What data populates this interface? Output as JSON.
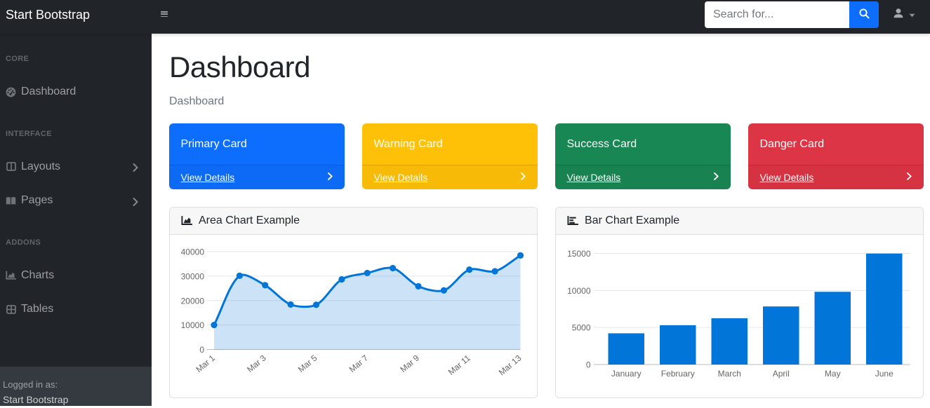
{
  "topnav": {
    "brand": "Start Bootstrap",
    "search": {
      "placeholder": "Search for..."
    }
  },
  "sidebar": {
    "sections": [
      {
        "heading": "CORE",
        "items": [
          {
            "label": "Dashboard",
            "icon": "gauge-icon",
            "chevron": false
          }
        ]
      },
      {
        "heading": "INTERFACE",
        "items": [
          {
            "label": "Layouts",
            "icon": "columns-icon",
            "chevron": true
          },
          {
            "label": "Pages",
            "icon": "book-open-icon",
            "chevron": true
          }
        ]
      },
      {
        "heading": "ADDONS",
        "items": [
          {
            "label": "Charts",
            "icon": "chart-area-icon",
            "chevron": false
          },
          {
            "label": "Tables",
            "icon": "table-icon",
            "chevron": false
          }
        ]
      }
    ],
    "footer": {
      "label": "Logged in as:",
      "user": "Start Bootstrap"
    }
  },
  "main": {
    "title": "Dashboard",
    "breadcrumb": "Dashboard",
    "cards": [
      {
        "title": "Primary Card",
        "link": "View Details",
        "color": "#0d6efd"
      },
      {
        "title": "Warning Card",
        "link": "View Details",
        "color": "#ffc107"
      },
      {
        "title": "Success Card",
        "link": "View Details",
        "color": "#198754"
      },
      {
        "title": "Danger Card",
        "link": "View Details",
        "color": "#dc3545"
      }
    ]
  },
  "chart_data": [
    {
      "type": "area",
      "title": "Area Chart Example",
      "icon": "chart-area-icon",
      "x": [
        "Mar 1",
        "Mar 2",
        "Mar 3",
        "Mar 4",
        "Mar 5",
        "Mar 6",
        "Mar 7",
        "Mar 8",
        "Mar 9",
        "Mar 10",
        "Mar 11",
        "Mar 12",
        "Mar 13"
      ],
      "values": [
        10000,
        30162,
        26263,
        18394,
        18287,
        28682,
        31274,
        33259,
        25849,
        24159,
        32651,
        31984,
        38451
      ],
      "x_tick_every": 2,
      "yticks": [
        0,
        10000,
        20000,
        30000,
        40000
      ],
      "ylim": [
        0,
        40000
      ],
      "line_color": "#0275d8",
      "fill_color": "rgba(2,117,216,0.2)",
      "grid": true,
      "legend": "none"
    },
    {
      "type": "bar",
      "title": "Bar Chart Example",
      "icon": "chart-bar-icon",
      "categories": [
        "January",
        "February",
        "March",
        "April",
        "May",
        "June"
      ],
      "values": [
        4215,
        5312,
        6251,
        7841,
        9821,
        14984
      ],
      "yticks": [
        0,
        5000,
        10000,
        15000
      ],
      "ylim": [
        0,
        15000
      ],
      "bar_color": "#0275d8",
      "grid": true,
      "legend": "none"
    }
  ],
  "colors": {
    "navbar_bg": "#212529",
    "sidebar_bg": "#212529",
    "sidebar_footer_bg": "#343a40",
    "accent": "#0d6efd",
    "chart_blue": "#0275d8",
    "grid_line": "#e6e6e6",
    "zero_line": "#b9bcbe",
    "tick_text": "#666666"
  }
}
